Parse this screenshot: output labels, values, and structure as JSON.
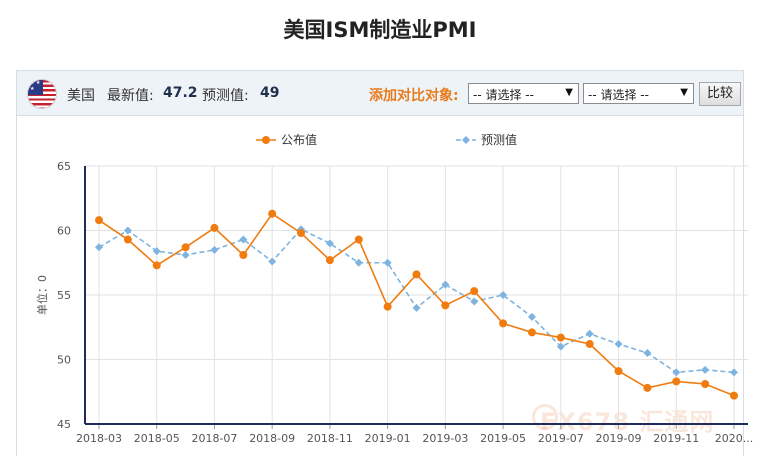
{
  "title": "美国ISM制造业PMI",
  "toolbar": {
    "country": "美国",
    "latest_label": "最新值:",
    "latest_value": "47.2",
    "forecast_label": "预测值:",
    "forecast_value": "49",
    "compare_label": "添加对比对象:",
    "select1": "-- 请选择 --",
    "select2": "-- 请选择 --",
    "compare_button": "比较"
  },
  "colors": {
    "actual": "#f07c10",
    "forecast": "#7fb3e0",
    "axis": "#1f2b5a",
    "grid": "#e2e2e2"
  },
  "watermark": "FX678 汇通网",
  "chart_data": {
    "type": "line",
    "ylabel": "单位：0",
    "ylim": [
      45,
      65
    ],
    "yticks": [
      45,
      50,
      55,
      60,
      65
    ],
    "x": [
      "2018-03",
      "2018-04",
      "2018-05",
      "2018-06",
      "2018-07",
      "2018-08",
      "2018-09",
      "2018-10",
      "2018-11",
      "2018-12",
      "2019-01",
      "2019-02",
      "2019-03",
      "2019-04",
      "2019-05",
      "2019-06",
      "2019-07",
      "2019-08",
      "2019-09",
      "2019-10",
      "2019-11",
      "2019-12",
      "2020-01"
    ],
    "xtick_labels": [
      "2018-03",
      "2018-05",
      "2018-07",
      "2018-09",
      "2018-11",
      "2019-01",
      "2019-03",
      "2019-05",
      "2019-07",
      "2019-09",
      "2019-11",
      "2020..."
    ],
    "xtick_indices": [
      0,
      2,
      4,
      6,
      8,
      10,
      12,
      14,
      16,
      18,
      20,
      22
    ],
    "legend": [
      "公布值",
      "预测值"
    ],
    "series": [
      {
        "name": "公布值",
        "values": [
          60.8,
          59.3,
          57.3,
          58.7,
          60.2,
          58.1,
          61.3,
          59.8,
          57.7,
          59.3,
          54.1,
          56.6,
          54.2,
          55.3,
          52.8,
          52.1,
          51.7,
          51.2,
          49.1,
          47.8,
          48.3,
          48.1,
          47.2
        ]
      },
      {
        "name": "预测值",
        "values": [
          58.7,
          60.0,
          58.4,
          58.1,
          58.5,
          59.3,
          57.6,
          60.1,
          59.0,
          57.5,
          57.5,
          54.0,
          55.8,
          54.5,
          55.0,
          53.3,
          51.0,
          52.0,
          51.2,
          50.5,
          49.0,
          49.2,
          49.0
        ]
      }
    ]
  }
}
